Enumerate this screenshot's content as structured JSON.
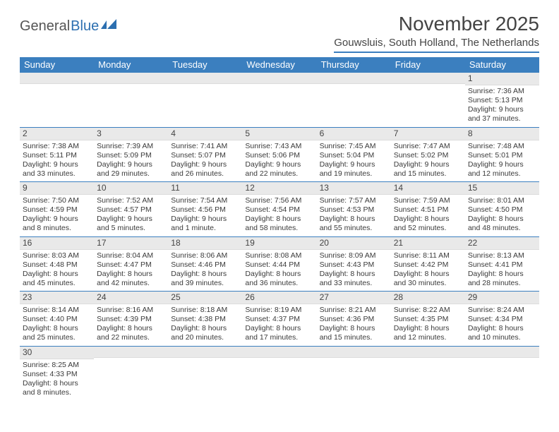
{
  "logo": {
    "general": "General",
    "blue": "Blue"
  },
  "title": "November 2025",
  "location": "Gouwsluis, South Holland, The Netherlands",
  "weekdays": [
    "Sunday",
    "Monday",
    "Tuesday",
    "Wednesday",
    "Thursday",
    "Friday",
    "Saturday"
  ],
  "colors": {
    "header_bar": "#3b7fbf",
    "daynum_bg": "#e9e9e9",
    "text": "#3a3a3a",
    "rule": "#3b7fbf"
  },
  "weeks": [
    [
      {
        "n": "",
        "sunrise": "",
        "sunset": "",
        "daylight": ""
      },
      {
        "n": "",
        "sunrise": "",
        "sunset": "",
        "daylight": ""
      },
      {
        "n": "",
        "sunrise": "",
        "sunset": "",
        "daylight": ""
      },
      {
        "n": "",
        "sunrise": "",
        "sunset": "",
        "daylight": ""
      },
      {
        "n": "",
        "sunrise": "",
        "sunset": "",
        "daylight": ""
      },
      {
        "n": "",
        "sunrise": "",
        "sunset": "",
        "daylight": ""
      },
      {
        "n": "1",
        "sunrise": "Sunrise: 7:36 AM",
        "sunset": "Sunset: 5:13 PM",
        "daylight": "Daylight: 9 hours and 37 minutes."
      }
    ],
    [
      {
        "n": "2",
        "sunrise": "Sunrise: 7:38 AM",
        "sunset": "Sunset: 5:11 PM",
        "daylight": "Daylight: 9 hours and 33 minutes."
      },
      {
        "n": "3",
        "sunrise": "Sunrise: 7:39 AM",
        "sunset": "Sunset: 5:09 PM",
        "daylight": "Daylight: 9 hours and 29 minutes."
      },
      {
        "n": "4",
        "sunrise": "Sunrise: 7:41 AM",
        "sunset": "Sunset: 5:07 PM",
        "daylight": "Daylight: 9 hours and 26 minutes."
      },
      {
        "n": "5",
        "sunrise": "Sunrise: 7:43 AM",
        "sunset": "Sunset: 5:06 PM",
        "daylight": "Daylight: 9 hours and 22 minutes."
      },
      {
        "n": "6",
        "sunrise": "Sunrise: 7:45 AM",
        "sunset": "Sunset: 5:04 PM",
        "daylight": "Daylight: 9 hours and 19 minutes."
      },
      {
        "n": "7",
        "sunrise": "Sunrise: 7:47 AM",
        "sunset": "Sunset: 5:02 PM",
        "daylight": "Daylight: 9 hours and 15 minutes."
      },
      {
        "n": "8",
        "sunrise": "Sunrise: 7:48 AM",
        "sunset": "Sunset: 5:01 PM",
        "daylight": "Daylight: 9 hours and 12 minutes."
      }
    ],
    [
      {
        "n": "9",
        "sunrise": "Sunrise: 7:50 AM",
        "sunset": "Sunset: 4:59 PM",
        "daylight": "Daylight: 9 hours and 8 minutes."
      },
      {
        "n": "10",
        "sunrise": "Sunrise: 7:52 AM",
        "sunset": "Sunset: 4:57 PM",
        "daylight": "Daylight: 9 hours and 5 minutes."
      },
      {
        "n": "11",
        "sunrise": "Sunrise: 7:54 AM",
        "sunset": "Sunset: 4:56 PM",
        "daylight": "Daylight: 9 hours and 1 minute."
      },
      {
        "n": "12",
        "sunrise": "Sunrise: 7:56 AM",
        "sunset": "Sunset: 4:54 PM",
        "daylight": "Daylight: 8 hours and 58 minutes."
      },
      {
        "n": "13",
        "sunrise": "Sunrise: 7:57 AM",
        "sunset": "Sunset: 4:53 PM",
        "daylight": "Daylight: 8 hours and 55 minutes."
      },
      {
        "n": "14",
        "sunrise": "Sunrise: 7:59 AM",
        "sunset": "Sunset: 4:51 PM",
        "daylight": "Daylight: 8 hours and 52 minutes."
      },
      {
        "n": "15",
        "sunrise": "Sunrise: 8:01 AM",
        "sunset": "Sunset: 4:50 PM",
        "daylight": "Daylight: 8 hours and 48 minutes."
      }
    ],
    [
      {
        "n": "16",
        "sunrise": "Sunrise: 8:03 AM",
        "sunset": "Sunset: 4:48 PM",
        "daylight": "Daylight: 8 hours and 45 minutes."
      },
      {
        "n": "17",
        "sunrise": "Sunrise: 8:04 AM",
        "sunset": "Sunset: 4:47 PM",
        "daylight": "Daylight: 8 hours and 42 minutes."
      },
      {
        "n": "18",
        "sunrise": "Sunrise: 8:06 AM",
        "sunset": "Sunset: 4:46 PM",
        "daylight": "Daylight: 8 hours and 39 minutes."
      },
      {
        "n": "19",
        "sunrise": "Sunrise: 8:08 AM",
        "sunset": "Sunset: 4:44 PM",
        "daylight": "Daylight: 8 hours and 36 minutes."
      },
      {
        "n": "20",
        "sunrise": "Sunrise: 8:09 AM",
        "sunset": "Sunset: 4:43 PM",
        "daylight": "Daylight: 8 hours and 33 minutes."
      },
      {
        "n": "21",
        "sunrise": "Sunrise: 8:11 AM",
        "sunset": "Sunset: 4:42 PM",
        "daylight": "Daylight: 8 hours and 30 minutes."
      },
      {
        "n": "22",
        "sunrise": "Sunrise: 8:13 AM",
        "sunset": "Sunset: 4:41 PM",
        "daylight": "Daylight: 8 hours and 28 minutes."
      }
    ],
    [
      {
        "n": "23",
        "sunrise": "Sunrise: 8:14 AM",
        "sunset": "Sunset: 4:40 PM",
        "daylight": "Daylight: 8 hours and 25 minutes."
      },
      {
        "n": "24",
        "sunrise": "Sunrise: 8:16 AM",
        "sunset": "Sunset: 4:39 PM",
        "daylight": "Daylight: 8 hours and 22 minutes."
      },
      {
        "n": "25",
        "sunrise": "Sunrise: 8:18 AM",
        "sunset": "Sunset: 4:38 PM",
        "daylight": "Daylight: 8 hours and 20 minutes."
      },
      {
        "n": "26",
        "sunrise": "Sunrise: 8:19 AM",
        "sunset": "Sunset: 4:37 PM",
        "daylight": "Daylight: 8 hours and 17 minutes."
      },
      {
        "n": "27",
        "sunrise": "Sunrise: 8:21 AM",
        "sunset": "Sunset: 4:36 PM",
        "daylight": "Daylight: 8 hours and 15 minutes."
      },
      {
        "n": "28",
        "sunrise": "Sunrise: 8:22 AM",
        "sunset": "Sunset: 4:35 PM",
        "daylight": "Daylight: 8 hours and 12 minutes."
      },
      {
        "n": "29",
        "sunrise": "Sunrise: 8:24 AM",
        "sunset": "Sunset: 4:34 PM",
        "daylight": "Daylight: 8 hours and 10 minutes."
      }
    ],
    [
      {
        "n": "30",
        "sunrise": "Sunrise: 8:25 AM",
        "sunset": "Sunset: 4:33 PM",
        "daylight": "Daylight: 8 hours and 8 minutes."
      },
      {
        "n": "",
        "sunrise": "",
        "sunset": "",
        "daylight": ""
      },
      {
        "n": "",
        "sunrise": "",
        "sunset": "",
        "daylight": ""
      },
      {
        "n": "",
        "sunrise": "",
        "sunset": "",
        "daylight": ""
      },
      {
        "n": "",
        "sunrise": "",
        "sunset": "",
        "daylight": ""
      },
      {
        "n": "",
        "sunrise": "",
        "sunset": "",
        "daylight": ""
      },
      {
        "n": "",
        "sunrise": "",
        "sunset": "",
        "daylight": ""
      }
    ]
  ]
}
